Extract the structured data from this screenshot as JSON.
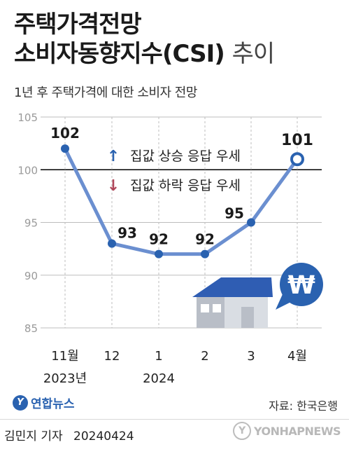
{
  "title": {
    "line1": "주택가격전망",
    "line2_bold": "소비자동향지수(CSI)",
    "line2_light": "추이"
  },
  "subtitle": "1년 후 주택가격에 대한 소비자 전망",
  "legend": {
    "up_label": "집값 상승 응답 우세",
    "down_label": "집값 하락 응답 우세",
    "up_color": "#2a62b0",
    "down_color": "#b0475a"
  },
  "colors": {
    "line": "#6b8fd0",
    "point_fill": "#2a62b0",
    "last_point_fill": "#ffffff",
    "reference_line": "#000000",
    "grid": "#bdbdbd",
    "house_roof": "#2f5db3",
    "house_body": "#d9dde3",
    "won_bubble": "#2a62b0"
  },
  "won_symbol": "₩",
  "chart_data": {
    "type": "line",
    "categories": [
      "11월",
      "12",
      "1",
      "2",
      "3",
      "4월"
    ],
    "year_labels": [
      "2023년",
      "",
      "2024",
      "",
      "",
      ""
    ],
    "values": [
      102,
      93,
      92,
      92,
      95,
      101
    ],
    "data_labels": [
      "102",
      "93",
      "92",
      "92",
      "95",
      "101"
    ],
    "ylim": [
      85,
      105
    ],
    "yticks": [
      85,
      90,
      95,
      100,
      105
    ],
    "reference_value": 100,
    "grid": "vertical-dashed",
    "legend_position": "top-center"
  },
  "footer": {
    "brand": "연합뉴스",
    "source": "자료: 한국은행",
    "author": "김민지 기자",
    "date": "20240424",
    "watermark": "YONHAPNEWS"
  }
}
